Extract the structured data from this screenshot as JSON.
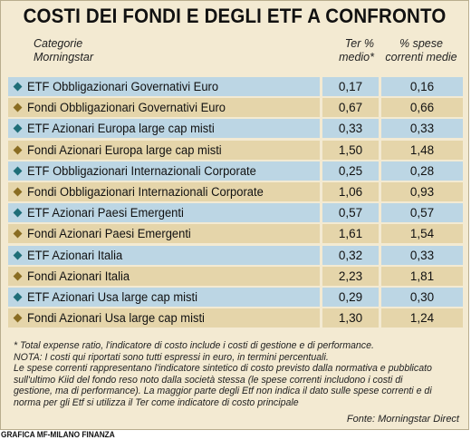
{
  "colors": {
    "panel_bg": "#f3ead2",
    "etf_row": "#bcd6e4",
    "fondi_row": "#e5d5aa",
    "etf_marker": "#1f6e78",
    "fondi_marker": "#8a6d22"
  },
  "chart_data": {
    "type": "table",
    "title": "COSTI DEI FONDI E DEGLI ETF A CONFRONTO",
    "columns": {
      "category": "Categorie Morningstar",
      "ter": "Ter % medio*",
      "spese": "% spese correnti medie"
    },
    "header_lines": {
      "category": [
        "Categorie",
        "Morningstar"
      ],
      "ter": [
        "Ter %",
        "medio*"
      ],
      "spese": [
        "% spese",
        "correnti medie"
      ]
    },
    "rows": [
      {
        "kind": "etf",
        "category": "ETF Obbligazionari Governativi Euro",
        "ter": "0,17",
        "spese": "0,16"
      },
      {
        "kind": "fondi",
        "category": "Fondi Obbligazionari Governativi Euro",
        "ter": "0,67",
        "spese": "0,66"
      },
      {
        "kind": "etf",
        "category": "ETF Azionari Europa large cap misti",
        "ter": "0,33",
        "spese": "0,33"
      },
      {
        "kind": "fondi",
        "category": "Fondi Azionari Europa large cap misti",
        "ter": "1,50",
        "spese": "1,48"
      },
      {
        "kind": "etf",
        "category": "ETF Obbligazionari Internazionali Corporate",
        "ter": "0,25",
        "spese": "0,28"
      },
      {
        "kind": "fondi",
        "category": "Fondi Obbligazionari Internazionali Corporate",
        "ter": "1,06",
        "spese": "0,93"
      },
      {
        "kind": "etf",
        "category": "ETF Azionari Paesi Emergenti",
        "ter": "0,57",
        "spese": "0,57"
      },
      {
        "kind": "fondi",
        "category": "Fondi Azionari Paesi Emergenti",
        "ter": "1,61",
        "spese": "1,54"
      },
      {
        "kind": "etf",
        "category": "ETF Azionari Italia",
        "ter": "0,32",
        "spese": "0,33"
      },
      {
        "kind": "fondi",
        "category": "Fondi Azionari Italia",
        "ter": "2,23",
        "spese": "1,81"
      },
      {
        "kind": "etf",
        "category": "ETF Azionari Usa large cap misti",
        "ter": "0,29",
        "spese": "0,30"
      },
      {
        "kind": "fondi",
        "category": "Fondi Azionari Usa large cap misti",
        "ter": "1,30",
        "spese": "1,24"
      }
    ],
    "notes": [
      "* Total expense ratio, l'indicatore di costo include i costi di gestione e di performance.",
      "NOTA: I costi qui riportati sono tutti espressi in euro, in termini percentuali.",
      "Le spese correnti rappresentano l'indicatore sintetico di costo previsto dalla normativa e pubblicato",
      "sull'ultimo Kiid del fondo reso noto dalla società stessa (le spese correnti includono i costi di",
      "gestione, ma di performance). La maggior parte degli Etf non indica il dato sulle spese correnti e di",
      "norma per gli Etf si utilizza il Ter come indicatore di costo principale"
    ],
    "source": "Fonte: Morningstar Direct",
    "credit": "GRAFICA MF-MILANO FINANZA"
  }
}
